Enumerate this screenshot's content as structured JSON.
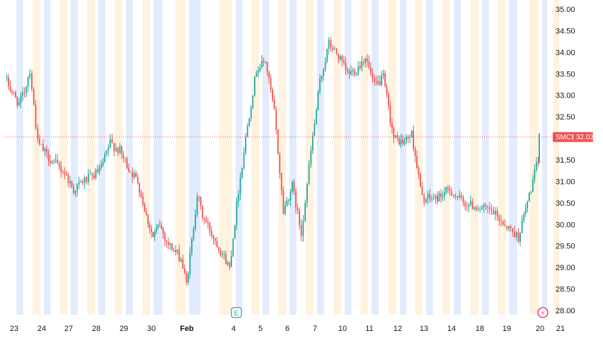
{
  "chart_data": {
    "type": "candlestick",
    "symbol": "SMCI",
    "last_price": "32.03",
    "y_axis": {
      "min": 28.0,
      "max": 35.0,
      "ticks": [
        "35.00",
        "34.50",
        "34.00",
        "33.50",
        "33.00",
        "32.50",
        "32.00",
        "31.50",
        "31.00",
        "30.50",
        "30.00",
        "29.50",
        "29.00",
        "28.50",
        "28.00"
      ]
    },
    "x_axis": {
      "labels": [
        "23",
        "24",
        "27",
        "28",
        "29",
        "30",
        "Feb",
        "4",
        "5",
        "6",
        "7",
        "10",
        "11",
        "12",
        "13",
        "14",
        "18",
        "19",
        "20",
        "21"
      ]
    },
    "price_path": [
      [
        "23",
        33.4
      ],
      [
        "23",
        33.0
      ],
      [
        "23",
        32.8
      ],
      [
        "23",
        33.1
      ],
      [
        "23",
        33.6
      ],
      [
        "24",
        31.9
      ],
      [
        "24",
        31.6
      ],
      [
        "24",
        31.4
      ],
      [
        "27",
        31.2
      ],
      [
        "27",
        30.8
      ],
      [
        "27",
        31.0
      ],
      [
        "28",
        31.1
      ],
      [
        "28",
        31.3
      ],
      [
        "28",
        31.9
      ],
      [
        "29",
        31.7
      ],
      [
        "29",
        31.3
      ],
      [
        "29",
        31.0
      ],
      [
        "30",
        30.2
      ],
      [
        "30",
        29.7
      ],
      [
        "30",
        30.0
      ],
      [
        "30",
        29.6
      ],
      [
        "Feb",
        29.2
      ],
      [
        "Feb",
        28.6
      ],
      [
        "Feb",
        29.6
      ],
      [
        "Feb",
        30.7
      ],
      [
        "Feb",
        30.2
      ],
      [
        "4",
        29.0
      ],
      [
        "4",
        30.8
      ],
      [
        "4",
        32.3
      ],
      [
        "5",
        33.6
      ],
      [
        "5",
        33.8
      ],
      [
        "5",
        32.6
      ],
      [
        "6",
        30.3
      ],
      [
        "6",
        30.9
      ],
      [
        "6",
        29.8
      ],
      [
        "7",
        31.7
      ],
      [
        "7",
        33.3
      ],
      [
        "7",
        34.2
      ],
      [
        "10",
        33.9
      ],
      [
        "10",
        33.5
      ],
      [
        "10",
        33.6
      ],
      [
        "11",
        33.9
      ],
      [
        "11",
        33.2
      ],
      [
        "11",
        33.4
      ],
      [
        "12",
        32.0
      ],
      [
        "12",
        31.9
      ],
      [
        "12",
        32.1
      ],
      [
        "13",
        30.6
      ],
      [
        "13",
        30.6
      ],
      [
        "14",
        30.8
      ],
      [
        "14",
        30.5
      ],
      [
        "18",
        30.4
      ],
      [
        "18",
        30.3
      ],
      [
        "19",
        30.0
      ],
      [
        "19",
        29.7
      ],
      [
        "20",
        31.5
      ],
      [
        "20",
        32.03
      ]
    ]
  },
  "badges": {
    "earnings": "E",
    "lightning": "⚡"
  },
  "colors": {
    "up": "#26a69a",
    "down": "#ef5350",
    "weekday_stripe": "#fff3e0",
    "weekend_stripe": "#e3ecfc",
    "price_line": "#ef5350",
    "tag": "#ef5350"
  }
}
